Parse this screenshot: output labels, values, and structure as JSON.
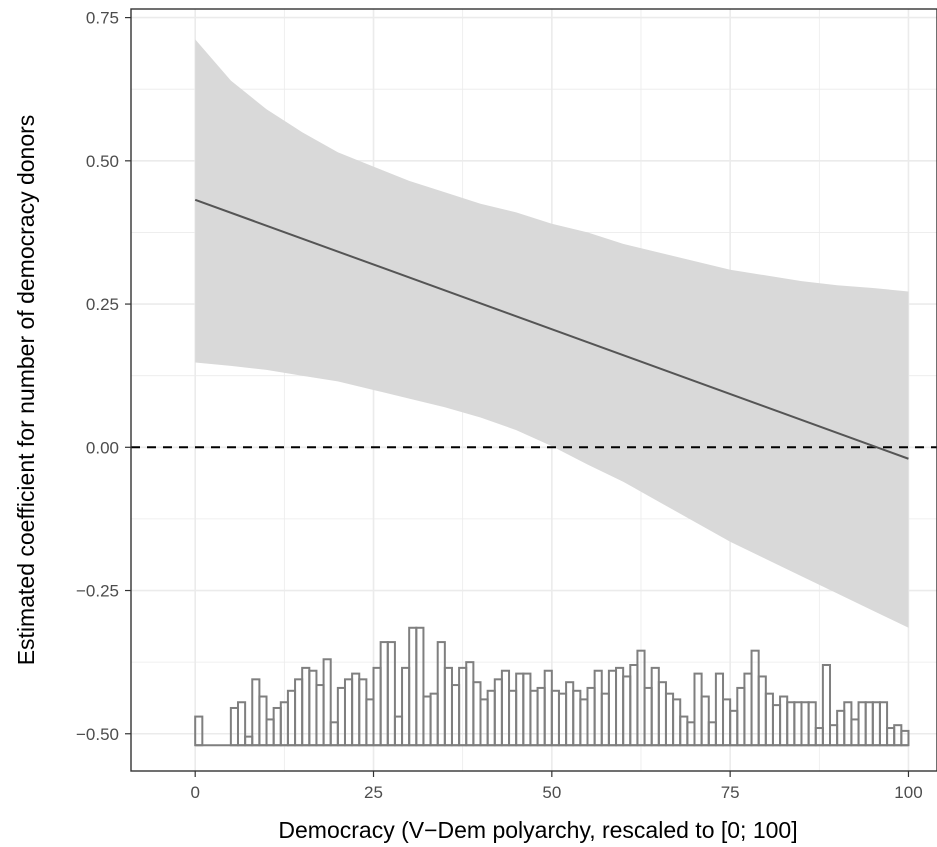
{
  "chart_data": {
    "type": "line",
    "title": "",
    "xlabel": "Democracy (V−Dem polyarchy, rescaled to [0; 100]",
    "ylabel": "Estimated coefficient for number of democracy donors",
    "xlim": [
      -9,
      104
    ],
    "ylim": [
      -0.565,
      0.765
    ],
    "x_ticks": [
      0,
      25,
      50,
      75,
      100
    ],
    "x_tick_labels": [
      "0",
      "25",
      "50",
      "75",
      "100"
    ],
    "y_ticks": [
      -0.5,
      -0.25,
      0.0,
      0.25,
      0.5,
      0.75
    ],
    "y_tick_labels": [
      "−0.50",
      "−0.25",
      "0.00",
      "0.25",
      "0.50",
      "0.75"
    ],
    "grid": true,
    "theme": "black-and-white, light grey gridlines, dark panel border",
    "colors": {
      "line": "#555555",
      "ribbon": "#d9d9d9",
      "reference_line": "#000000",
      "histogram": "#7f7f7f",
      "grid": "#ebebeb",
      "border": "#333333"
    },
    "estimate_line": {
      "x": [
        0,
        100
      ],
      "y": [
        0.432,
        -0.02
      ]
    },
    "confidence_band": {
      "x": [
        0,
        5,
        10,
        15,
        20,
        25,
        30,
        35,
        40,
        45,
        50,
        55,
        60,
        65,
        70,
        75,
        80,
        85,
        90,
        95,
        100
      ],
      "upper": [
        0.712,
        0.64,
        0.59,
        0.55,
        0.515,
        0.49,
        0.465,
        0.445,
        0.425,
        0.41,
        0.39,
        0.375,
        0.355,
        0.34,
        0.325,
        0.31,
        0.3,
        0.29,
        0.283,
        0.278,
        0.272
      ],
      "lower": [
        0.148,
        0.142,
        0.135,
        0.125,
        0.115,
        0.1,
        0.085,
        0.07,
        0.052,
        0.03,
        0.002,
        -0.03,
        -0.06,
        -0.095,
        -0.13,
        -0.165,
        -0.195,
        -0.225,
        -0.255,
        -0.285,
        -0.315
      ]
    },
    "reference_line": {
      "y": 0,
      "style": "dashed"
    },
    "distribution_histogram": {
      "baseline_y": -0.52,
      "bin_width": 1,
      "bin_start": [
        0,
        5,
        6,
        7,
        8,
        9,
        10,
        11,
        12,
        13,
        14,
        15,
        16,
        17,
        18,
        19,
        20,
        21,
        22,
        23,
        24,
        25,
        26,
        27,
        28,
        29,
        30,
        31,
        32,
        33,
        34,
        35,
        36,
        37,
        38,
        39,
        40,
        41,
        42,
        43,
        44,
        45,
        46,
        47,
        48,
        49,
        50,
        51,
        52,
        53,
        54,
        55,
        56,
        57,
        58,
        59,
        60,
        61,
        62,
        63,
        64,
        65,
        66,
        67,
        68,
        69,
        70,
        71,
        72,
        73,
        74,
        75,
        76,
        77,
        78,
        79,
        80,
        81,
        82,
        83,
        84,
        85,
        86,
        87,
        88,
        89,
        90,
        91,
        92,
        93,
        94,
        95,
        96,
        97,
        98,
        99
      ],
      "top_y": [
        -0.47,
        -0.455,
        -0.445,
        -0.505,
        -0.405,
        -0.435,
        -0.475,
        -0.455,
        -0.445,
        -0.425,
        -0.405,
        -0.385,
        -0.39,
        -0.415,
        -0.37,
        -0.48,
        -0.42,
        -0.405,
        -0.395,
        -0.405,
        -0.44,
        -0.385,
        -0.34,
        -0.34,
        -0.47,
        -0.385,
        -0.315,
        -0.315,
        -0.435,
        -0.43,
        -0.34,
        -0.385,
        -0.415,
        -0.385,
        -0.375,
        -0.41,
        -0.44,
        -0.425,
        -0.405,
        -0.39,
        -0.425,
        -0.395,
        -0.395,
        -0.425,
        -0.42,
        -0.39,
        -0.425,
        -0.43,
        -0.41,
        -0.425,
        -0.44,
        -0.42,
        -0.39,
        -0.43,
        -0.39,
        -0.385,
        -0.4,
        -0.38,
        -0.355,
        -0.42,
        -0.385,
        -0.41,
        -0.43,
        -0.44,
        -0.47,
        -0.48,
        -0.395,
        -0.435,
        -0.48,
        -0.395,
        -0.44,
        -0.46,
        -0.42,
        -0.395,
        -0.355,
        -0.4,
        -0.43,
        -0.45,
        -0.435,
        -0.445,
        -0.445,
        -0.445,
        -0.445,
        -0.49,
        -0.38,
        -0.485,
        -0.46,
        -0.445,
        -0.475,
        -0.445,
        -0.445,
        -0.445,
        -0.445,
        -0.49,
        -0.485,
        -0.495
      ]
    }
  }
}
